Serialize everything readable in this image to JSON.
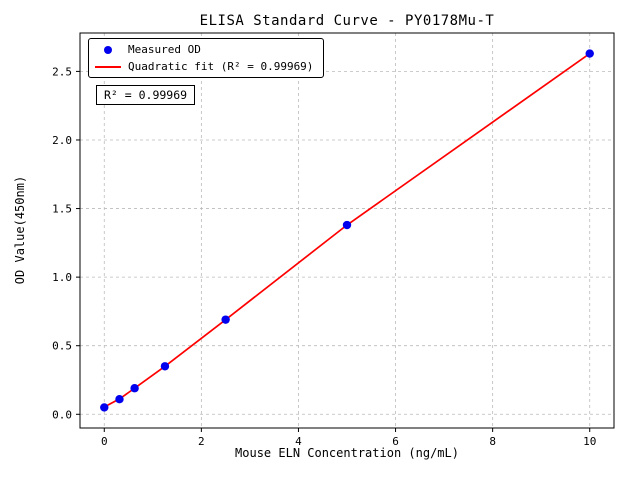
{
  "title": "ELISA Standard Curve - PY0178Mu-T",
  "legend": {
    "measured_label": "Measured OD",
    "fit_label": "Quadratic fit (R² = 0.99969)"
  },
  "annotation": "R² = 0.99969",
  "chart_data": {
    "type": "scatter",
    "title": "ELISA Standard Curve - PY0178Mu-T",
    "xlabel": "Mouse ELN Concentration (ng/mL)",
    "ylabel": "OD Value(450nm)",
    "series": [
      {
        "name": "Measured OD",
        "x": [
          0,
          0.313,
          0.625,
          1.25,
          2.5,
          5,
          10
        ],
        "y": [
          0.05,
          0.11,
          0.19,
          0.35,
          0.69,
          1.38,
          2.63
        ]
      },
      {
        "name": "Quadratic fit (R² = 0.99969)",
        "x": [
          0,
          0.313,
          0.625,
          1.25,
          2.5,
          5,
          10
        ],
        "y": [
          0.053,
          0.112,
          0.19,
          0.35,
          0.69,
          1.38,
          2.63
        ]
      }
    ],
    "r_squared": 0.99969,
    "xticks": [
      0,
      2,
      4,
      6,
      8,
      10
    ],
    "xtick_labels": [
      "0",
      "2",
      "4",
      "6",
      "8",
      "10"
    ],
    "yticks": [
      0.0,
      0.5,
      1.0,
      1.5,
      2.0,
      2.5
    ],
    "ytick_labels": [
      "0.0",
      "0.5",
      "1.0",
      "1.5",
      "2.0",
      "2.5"
    ],
    "xlim": [
      -0.5,
      10.5
    ],
    "ylim": [
      -0.1,
      2.78
    ],
    "grid": true,
    "grid_style": "dashed",
    "legend_position": "upper left",
    "colors": {
      "points": "#0000ee",
      "fit": "#ff0000",
      "grid": "#bbbbbb",
      "axis": "#000000",
      "background": "#ffffff"
    }
  }
}
